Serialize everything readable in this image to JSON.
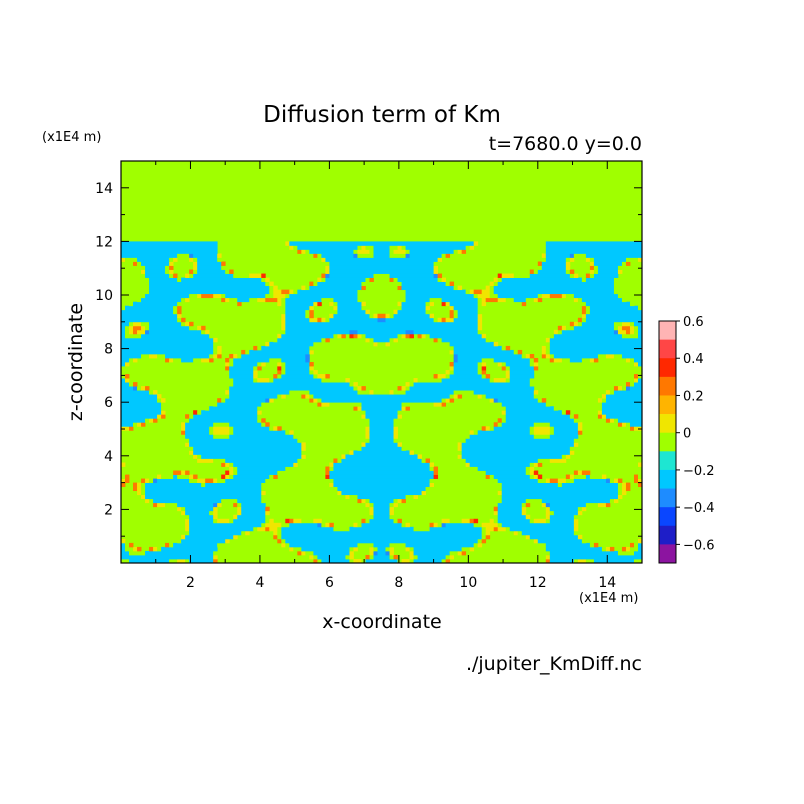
{
  "chart_data": {
    "type": "heatmap",
    "title": "Diffusion term of Km",
    "subtitle": "t=7680.0 y=0.0",
    "xlabel": "x-coordinate",
    "ylabel": "z-coordinate",
    "x_unit": "(x1E4 m)",
    "y_unit": "(x1E4 m)",
    "xlim": [
      0,
      15
    ],
    "ylim": [
      0,
      15
    ],
    "x_ticks": [
      2,
      4,
      6,
      8,
      10,
      12,
      14
    ],
    "y_ticks": [
      2,
      4,
      6,
      8,
      10,
      12,
      14
    ],
    "source": "./jupiter_KmDiff.nc",
    "colorbar": {
      "labels": [
        "0.6",
        "0.4",
        "0.2",
        "0",
        "−0.2",
        "−0.4",
        "−0.6"
      ],
      "levels": [
        -0.6,
        -0.5,
        -0.4,
        -0.3,
        -0.2,
        -0.1,
        0,
        0.1,
        0.2,
        0.3,
        0.4,
        0.5,
        0.6
      ],
      "colors": [
        "#8c14a0",
        "#1e1ec8",
        "#0a46ff",
        "#1e8cff",
        "#00c8ff",
        "#1ee6d2",
        "#a0ff00",
        "#f0e600",
        "#ffb400",
        "#ff7800",
        "#ff2800",
        "#ff4646"
      ],
      "top_color": "#ffb4b4"
    },
    "background_value": 0,
    "turbulent_layer_z": [
      0,
      12.2
    ]
  }
}
